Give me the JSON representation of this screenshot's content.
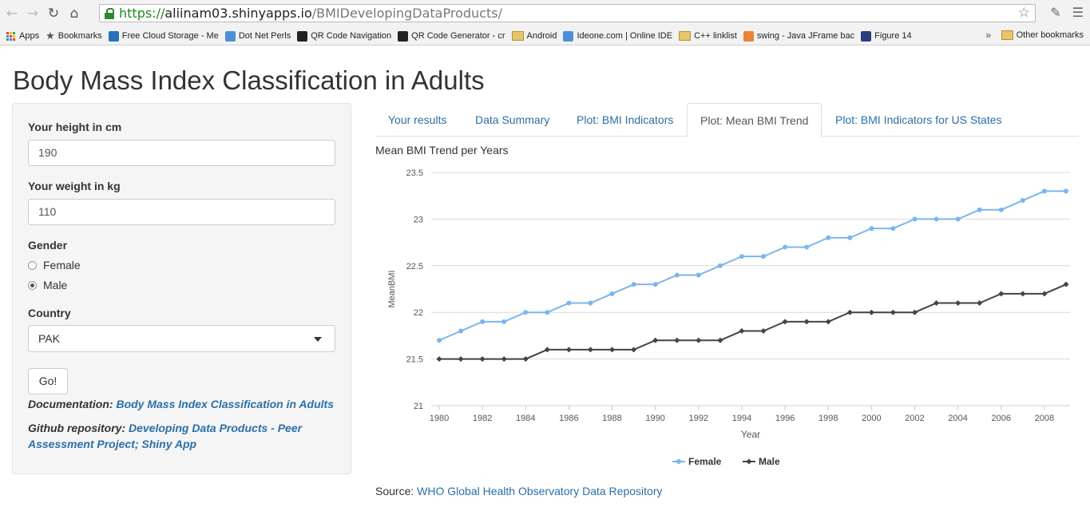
{
  "browser": {
    "url_scheme": "https://",
    "url_host": "aliinam03.shinyapps.io",
    "url_path": "/BMIDevelopingDataProducts/",
    "bookmarks": [
      {
        "label": "Apps",
        "icon": "apps-grid-icon"
      },
      {
        "label": "Bookmarks",
        "icon": "star-icon"
      },
      {
        "label": "Free Cloud Storage - Me",
        "icon": "cloud-icon"
      },
      {
        "label": "Dot Net Perls",
        "icon": "site-icon"
      },
      {
        "label": "QR Code Navigation",
        "icon": "qr-icon"
      },
      {
        "label": "QR Code Generator - cr",
        "icon": "qr-icon"
      },
      {
        "label": "Android",
        "icon": "folder-icon"
      },
      {
        "label": "Ideone.com | Online IDE",
        "icon": "site-icon"
      },
      {
        "label": "C++ linklist",
        "icon": "folder-icon"
      },
      {
        "label": "swing - Java JFrame bac",
        "icon": "stack-icon"
      },
      {
        "label": "Figure 14",
        "icon": "shield-icon"
      }
    ],
    "other_bookmarks": "Other bookmarks",
    "overflow": "»"
  },
  "page": {
    "title": "Body Mass Index Classification in Adults"
  },
  "sidebar": {
    "height_label": "Your height in cm",
    "height_value": "190",
    "weight_label": "Your weight in kg",
    "weight_value": "110",
    "gender_label": "Gender",
    "gender_options": [
      "Female",
      "Male"
    ],
    "gender_selected": "Male",
    "country_label": "Country",
    "country_value": "PAK",
    "go_label": "Go!",
    "doc_label": "Documentation:",
    "doc_link": "Body Mass Index Classification in Adults",
    "repo_label": "Github repository:",
    "repo_link": "Developing Data Products - Peer Assessment Project; Shiny App"
  },
  "tabs": [
    {
      "label": "Your results",
      "active": false
    },
    {
      "label": "Data Summary",
      "active": false
    },
    {
      "label": "Plot: BMI Indicators",
      "active": false
    },
    {
      "label": "Plot: Mean BMI Trend",
      "active": true
    },
    {
      "label": "Plot: BMI Indicators for US States",
      "active": false
    }
  ],
  "chart_title": "Mean BMI Trend per Years",
  "source_label": "Source:",
  "source_link": "WHO Global Health Observatory Data Repository",
  "chart_data": {
    "type": "line",
    "title": "Mean BMI Trend per Years",
    "xlabel": "Year",
    "ylabel": "MeanBMI",
    "xlim": [
      1980,
      2009
    ],
    "ylim": [
      21,
      23.5
    ],
    "x_ticks": [
      1980,
      1982,
      1984,
      1986,
      1988,
      1990,
      1992,
      1994,
      1996,
      1998,
      2000,
      2002,
      2004,
      2006,
      2008
    ],
    "y_ticks": [
      "21",
      "21.5",
      "22",
      "22.5",
      "23",
      "23.5"
    ],
    "grid": true,
    "legend": "bottom-center",
    "x": [
      1980,
      1981,
      1982,
      1983,
      1984,
      1985,
      1986,
      1987,
      1988,
      1989,
      1990,
      1991,
      1992,
      1993,
      1994,
      1995,
      1996,
      1997,
      1998,
      1999,
      2000,
      2001,
      2002,
      2003,
      2004,
      2005,
      2006,
      2007,
      2008,
      2009
    ],
    "series": [
      {
        "name": "Female",
        "color": "#7cb5ec",
        "values": [
          21.7,
          21.8,
          21.9,
          21.9,
          22.0,
          22.0,
          22.1,
          22.1,
          22.2,
          22.3,
          22.3,
          22.4,
          22.4,
          22.5,
          22.6,
          22.6,
          22.7,
          22.7,
          22.8,
          22.8,
          22.9,
          22.9,
          23.0,
          23.0,
          23.0,
          23.1,
          23.1,
          23.2,
          23.3,
          23.3
        ]
      },
      {
        "name": "Male",
        "color": "#434348",
        "values": [
          21.5,
          21.5,
          21.5,
          21.5,
          21.5,
          21.6,
          21.6,
          21.6,
          21.6,
          21.6,
          21.7,
          21.7,
          21.7,
          21.7,
          21.8,
          21.8,
          21.9,
          21.9,
          21.9,
          22.0,
          22.0,
          22.0,
          22.0,
          22.1,
          22.1,
          22.1,
          22.2,
          22.2,
          22.2,
          22.3
        ]
      }
    ]
  }
}
